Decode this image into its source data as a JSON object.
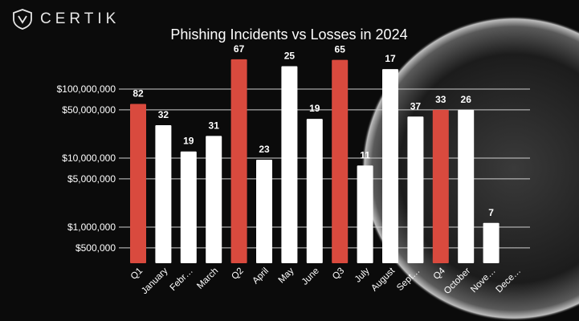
{
  "brand": {
    "logo_text": "CERTIK"
  },
  "colors": {
    "quarter_bar": "#d94a3e",
    "month_bar": "#ffffff",
    "background": "#0b0b0b",
    "gridline": "#cfcfcf",
    "text": "#ffffff"
  },
  "chart_data": {
    "type": "bar",
    "title": "Phishing Incidents vs Losses in 2024",
    "y_scale": "log",
    "ylim": [
      300000,
      300000000
    ],
    "y_ticks": [
      {
        "value": 100000000,
        "label": "$100,000,000"
      },
      {
        "value": 50000000,
        "label": "$50,000,000"
      },
      {
        "value": 10000000,
        "label": "$10,000,000"
      },
      {
        "value": 5000000,
        "label": "$5,000,000"
      },
      {
        "value": 1000000,
        "label": "$1,000,000"
      },
      {
        "value": 500000,
        "label": "$500,000"
      }
    ],
    "grid": true,
    "categories": [
      "Q1",
      "January",
      "Febr…",
      "March",
      "Q2",
      "April",
      "May",
      "June",
      "Q3",
      "July",
      "August",
      "Sept…",
      "Q4",
      "October",
      "Nove…",
      "Dece…"
    ],
    "values": [
      61000000,
      30000000,
      12500000,
      21000000,
      270000000,
      9500000,
      215000000,
      37000000,
      265000000,
      7800000,
      195000000,
      40000000,
      50000000,
      50000000,
      1150000,
      null
    ],
    "incident_labels": [
      "82",
      "32",
      "19",
      "31",
      "67",
      "23",
      "25",
      "19",
      "65",
      "11",
      "17",
      "37",
      "33",
      "26",
      "7",
      ""
    ],
    "bar_kind": [
      "quarter",
      "month",
      "month",
      "month",
      "quarter",
      "month",
      "month",
      "month",
      "quarter",
      "month",
      "month",
      "month",
      "quarter",
      "month",
      "month",
      "month"
    ]
  }
}
